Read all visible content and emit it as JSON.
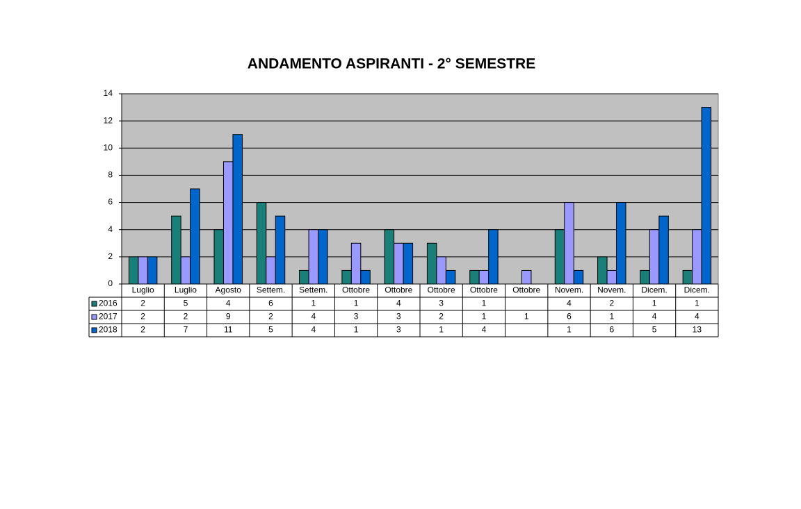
{
  "chart_data": {
    "type": "bar",
    "title": "ANDAMENTO ASPIRANTI  -  2° SEMESTRE",
    "categories": [
      "Luglio",
      "Luglio",
      "Agosto",
      "Settem.",
      "Settem.",
      "Ottobre",
      "Ottobre",
      "Ottobre",
      "Ottobre",
      "Ottobre",
      "Novem.",
      "Novem.",
      "Dicem.",
      "Dicem."
    ],
    "series": [
      {
        "name": "2016",
        "color": "#1a7f78",
        "values": [
          2,
          5,
          4,
          6,
          1,
          1,
          4,
          3,
          1,
          null,
          4,
          2,
          1,
          1
        ]
      },
      {
        "name": "2017",
        "color": "#9999ff",
        "values": [
          2,
          2,
          9,
          2,
          4,
          3,
          3,
          2,
          1,
          1,
          6,
          1,
          4,
          4
        ]
      },
      {
        "name": "2018",
        "color": "#0066cc",
        "values": [
          2,
          7,
          11,
          5,
          4,
          1,
          3,
          1,
          4,
          null,
          1,
          6,
          5,
          13
        ]
      }
    ],
    "ylim": [
      0,
      14
    ],
    "yticks": [
      0,
      2,
      4,
      6,
      8,
      10,
      12,
      14
    ],
    "grid": true,
    "plot_background": "#c0c0c0"
  }
}
